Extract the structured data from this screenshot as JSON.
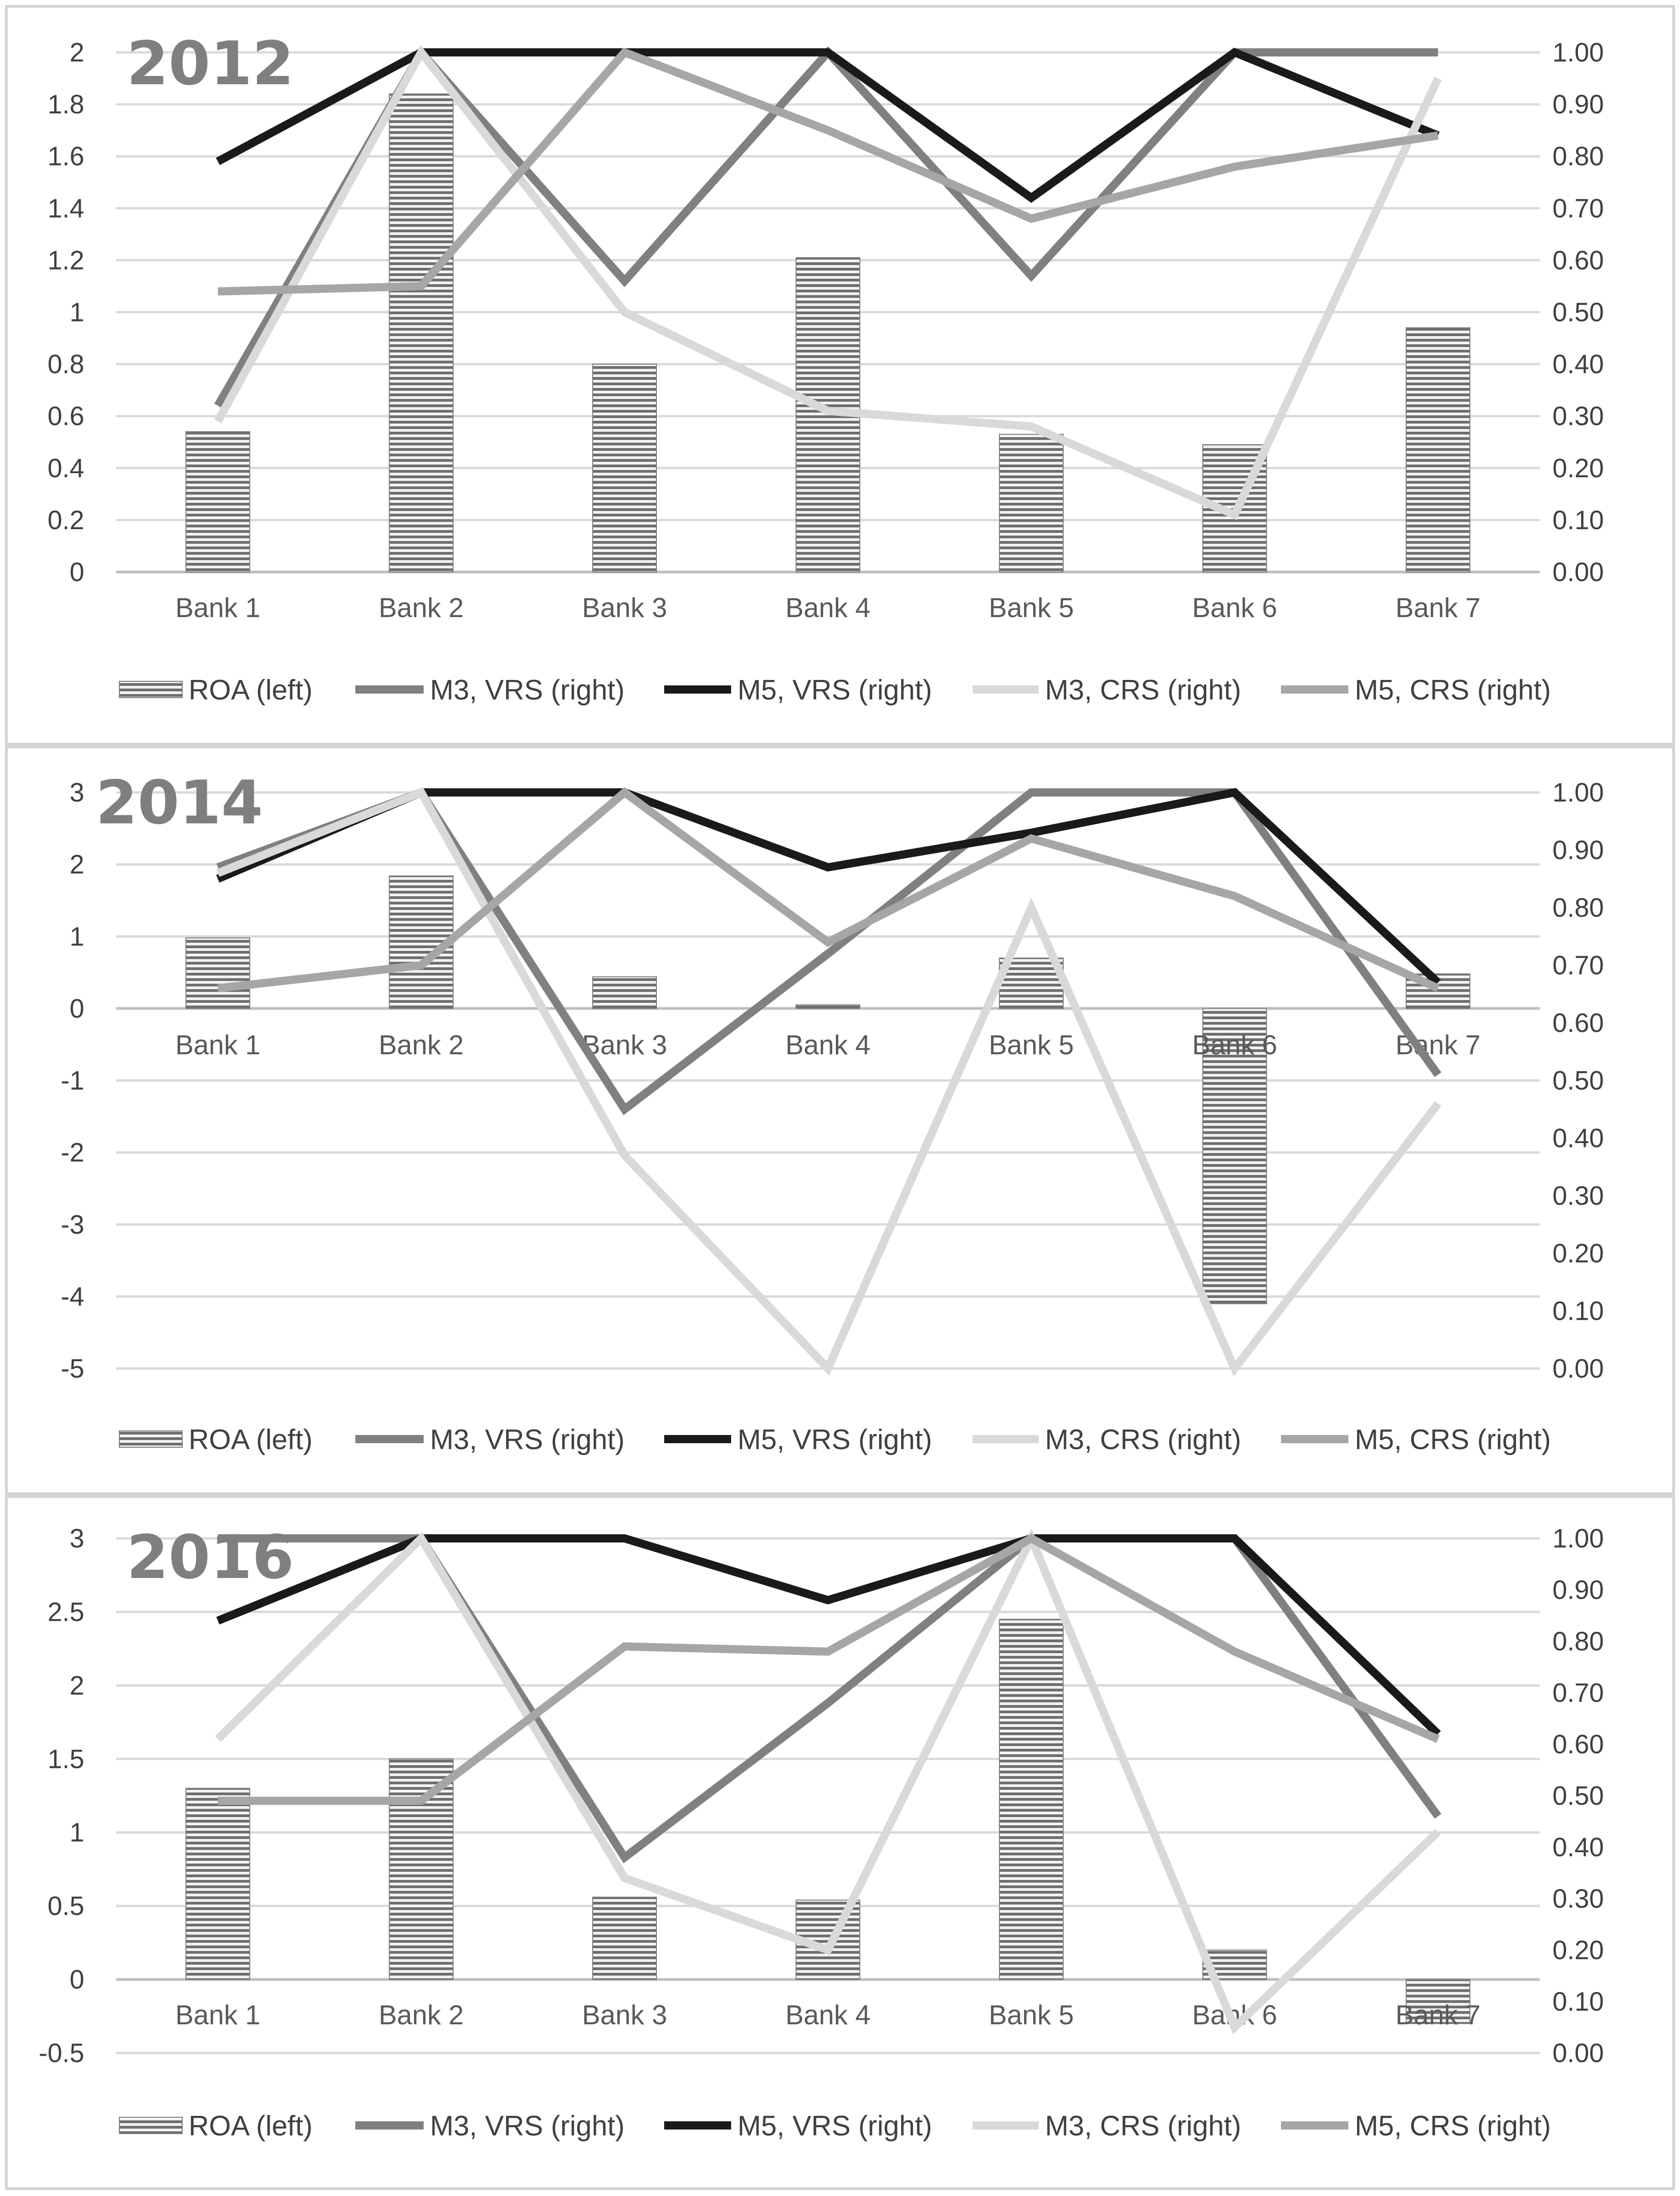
{
  "chart_data": [
    {
      "type": "bar",
      "title": "2012",
      "categories": [
        "Bank 1",
        "Bank 2",
        "Bank 3",
        "Bank 4",
        "Bank 5",
        "Bank 6",
        "Bank 7"
      ],
      "left_axis": {
        "ylim": [
          0,
          2
        ],
        "ticks": [
          "0",
          "0.2",
          "0.4",
          "0.6",
          "0.8",
          "1",
          "1.2",
          "1.4",
          "1.6",
          "1.8",
          "2"
        ]
      },
      "right_axis": {
        "ylim": [
          0,
          1
        ],
        "ticks": [
          "0.00",
          "0.10",
          "0.20",
          "0.30",
          "0.40",
          "0.50",
          "0.60",
          "0.70",
          "0.80",
          "0.90",
          "1.00"
        ]
      },
      "bar_series": {
        "name": "ROA (left)",
        "axis": "left",
        "values": [
          0.54,
          1.84,
          0.8,
          1.21,
          0.53,
          0.49,
          0.94
        ]
      },
      "line_series": [
        {
          "name": "M3, VRS (right)",
          "axis": "right",
          "color": "#808080",
          "values": [
            0.32,
            1.0,
            0.56,
            1.0,
            0.57,
            1.0,
            1.0
          ]
        },
        {
          "name": "M5, VRS (right)",
          "axis": "right",
          "color": "#1a1a1a",
          "values": [
            0.79,
            1.0,
            1.0,
            1.0,
            0.72,
            1.0,
            0.84
          ]
        },
        {
          "name": "M3, CRS (right)",
          "axis": "right",
          "color": "#d9d9d9",
          "values": [
            0.29,
            1.0,
            0.5,
            0.31,
            0.28,
            0.11,
            0.95
          ]
        },
        {
          "name": "M5, CRS (right)",
          "axis": "right",
          "color": "#a6a6a6",
          "values": [
            0.54,
            0.55,
            1.0,
            0.85,
            0.68,
            0.78,
            0.84
          ]
        }
      ],
      "legend": [
        "ROA (left)",
        "M3, VRS (right)",
        "M5, VRS (right)",
        "M3, CRS (right)",
        "M5, CRS (right)"
      ]
    },
    {
      "type": "bar",
      "title": "2014",
      "categories": [
        "Bank 1",
        "Bank 2",
        "Bank 3",
        "Bank 4",
        "Bank 5",
        "Bank 6",
        "Bank 7"
      ],
      "left_axis": {
        "ylim": [
          -5,
          3
        ],
        "ticks": [
          "-5",
          "-4",
          "-3",
          "-2",
          "-1",
          "0",
          "1",
          "2",
          "3"
        ]
      },
      "right_axis": {
        "ylim": [
          0,
          1
        ],
        "ticks": [
          "0.00",
          "0.10",
          "0.20",
          "0.30",
          "0.40",
          "0.50",
          "0.60",
          "0.70",
          "0.80",
          "0.90",
          "1.00"
        ]
      },
      "bar_series": {
        "name": "ROA (left)",
        "axis": "left",
        "values": [
          0.98,
          1.84,
          0.44,
          0.05,
          0.7,
          -4.1,
          0.48
        ]
      },
      "line_series": [
        {
          "name": "M3, VRS (right)",
          "axis": "right",
          "color": "#808080",
          "values": [
            0.87,
            1.0,
            0.45,
            0.72,
            1.0,
            1.0,
            0.51
          ]
        },
        {
          "name": "M5, VRS (right)",
          "axis": "right",
          "color": "#1a1a1a",
          "values": [
            0.85,
            1.0,
            1.0,
            0.87,
            0.93,
            1.0,
            0.67
          ]
        },
        {
          "name": "M3, CRS (right)",
          "axis": "right",
          "color": "#d9d9d9",
          "values": [
            0.86,
            1.0,
            0.37,
            0.0,
            0.8,
            0.0,
            0.46
          ]
        },
        {
          "name": "M5, CRS (right)",
          "axis": "right",
          "color": "#a6a6a6",
          "values": [
            0.66,
            0.7,
            1.0,
            0.74,
            0.92,
            0.82,
            0.66
          ]
        }
      ],
      "legend": [
        "ROA (left)",
        "M3, VRS (right)",
        "M5, VRS (right)",
        "M3, CRS (right)",
        "M5, CRS (right)"
      ]
    },
    {
      "type": "bar",
      "title": "2016",
      "categories": [
        "Bank 1",
        "Bank 2",
        "Bank 3",
        "Bank 4",
        "Bank 5",
        "Bank 6",
        "Bank 7"
      ],
      "left_axis": {
        "ylim": [
          -0.5,
          3
        ],
        "ticks": [
          "-0.5",
          "0",
          "0.5",
          "1",
          "1.5",
          "2",
          "2.5",
          "3"
        ]
      },
      "right_axis": {
        "ylim": [
          0,
          1
        ],
        "ticks": [
          "0.00",
          "0.10",
          "0.20",
          "0.30",
          "0.40",
          "0.50",
          "0.60",
          "0.70",
          "0.80",
          "0.90",
          "1.00"
        ]
      },
      "bar_series": {
        "name": "ROA (left)",
        "axis": "left",
        "values": [
          1.3,
          1.5,
          0.56,
          0.54,
          2.45,
          0.2,
          -0.3
        ]
      },
      "line_series": [
        {
          "name": "M3, VRS (right)",
          "axis": "right",
          "color": "#808080",
          "values": [
            1.0,
            1.0,
            0.38,
            0.68,
            1.0,
            1.0,
            0.46
          ]
        },
        {
          "name": "M5, VRS (right)",
          "axis": "right",
          "color": "#1a1a1a",
          "values": [
            0.84,
            1.0,
            1.0,
            0.88,
            1.0,
            1.0,
            0.62
          ]
        },
        {
          "name": "M3, CRS (right)",
          "axis": "right",
          "color": "#d9d9d9",
          "values": [
            0.61,
            1.0,
            0.34,
            0.2,
            1.0,
            0.05,
            0.43
          ]
        },
        {
          "name": "M5, CRS (right)",
          "axis": "right",
          "color": "#a6a6a6",
          "values": [
            0.49,
            0.49,
            0.79,
            0.78,
            1.0,
            0.78,
            0.61
          ]
        }
      ],
      "legend": [
        "ROA (left)",
        "M3, VRS (right)",
        "M5, VRS (right)",
        "M3, CRS (right)",
        "M5, CRS (right)"
      ]
    }
  ]
}
